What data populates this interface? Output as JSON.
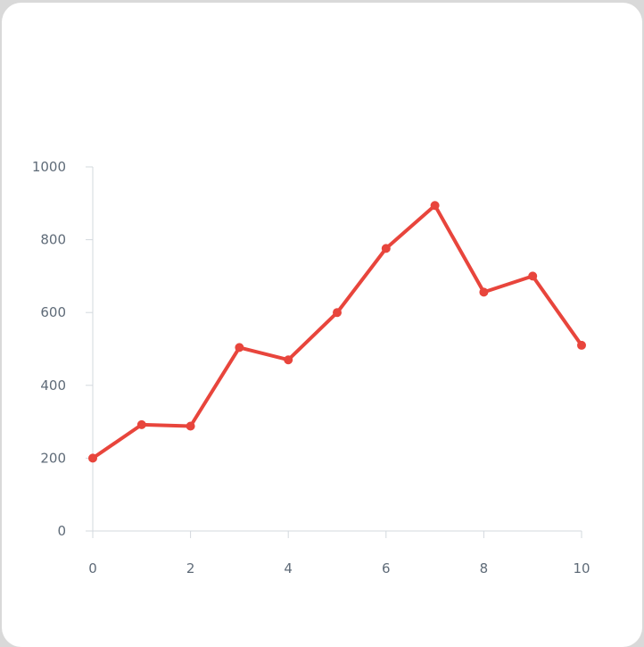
{
  "chart_data": {
    "type": "line",
    "title": "",
    "xlabel": "",
    "ylabel": "",
    "x": [
      0,
      1,
      2,
      3,
      4,
      5,
      6,
      7,
      8,
      9,
      10
    ],
    "series": [
      {
        "values": [
          200,
          292,
          288,
          504,
          470,
          600,
          776,
          894,
          656,
          700,
          510
        ]
      }
    ],
    "xlim": [
      0,
      10
    ],
    "ylim": [
      0,
      1000
    ],
    "x_ticks": [
      0,
      2,
      4,
      6,
      8,
      10
    ],
    "y_ticks": [
      0,
      200,
      400,
      600,
      800,
      1000
    ],
    "x_tick_labels": [
      "0",
      "2",
      "4",
      "6",
      "8",
      "10"
    ],
    "y_tick_labels": [
      "0",
      "200",
      "400",
      "600",
      "800",
      "1000"
    ],
    "grid": false,
    "legend": "none",
    "line_color": "#e8453c",
    "axis_color": "#d3d8de",
    "tick_label_color": "#5f6b78"
  }
}
